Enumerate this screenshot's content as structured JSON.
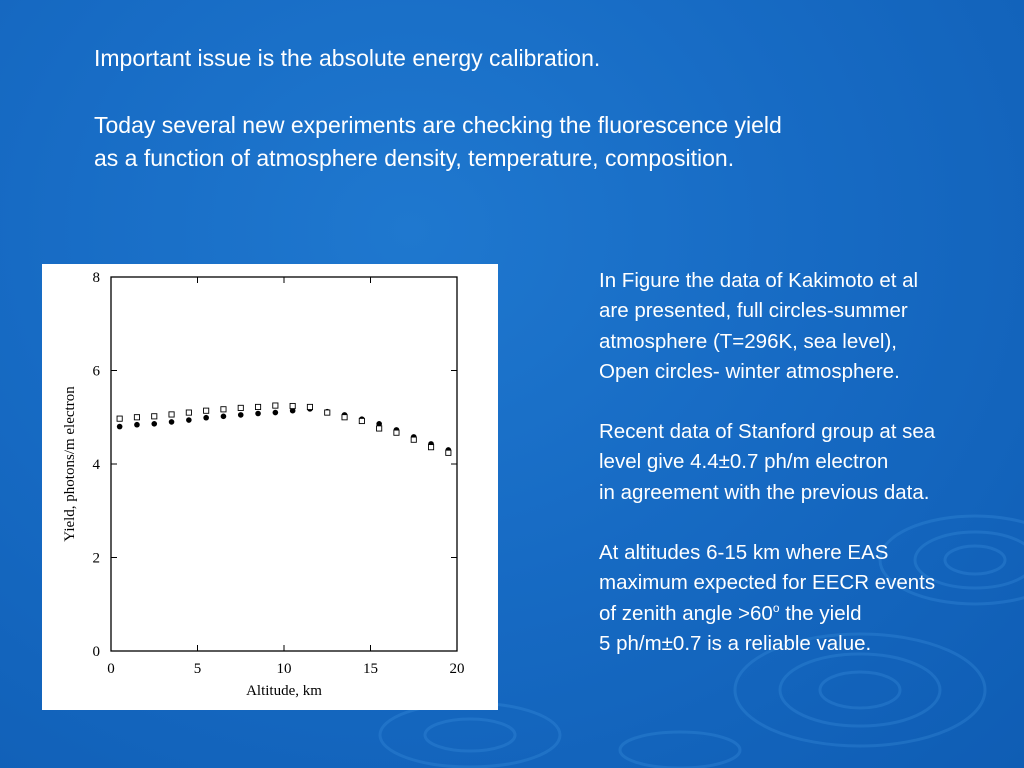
{
  "slide": {
    "top_paragraphs": [
      [
        "Important issue is the absolute energy calibration."
      ],
      [
        "Today several new experiments are checking the fluorescence yield",
        "as a function of atmosphere density, temperature, composition."
      ]
    ],
    "side_paragraphs": [
      [
        "In Figure the data of Kakimoto et al",
        "are presented, full circles-summer",
        "atmosphere (T=296K, sea level),",
        "Open circles- winter atmosphere."
      ],
      [
        "Recent data of Stanford group at sea",
        "level give 4.4±0.7 ph/m electron",
        "in agreement with the previous data."
      ]
    ],
    "last_paragraph": {
      "line1": "At altitudes 6-15 km where EAS",
      "line2": "maximum expected for EECR events",
      "line3_before": "of zenith angle >60",
      "line3_sup": "o",
      "line3_after": " the yield",
      "line4": "5 ph/m±0.7  is a reliable value."
    },
    "colors": {
      "background": "#1769c2",
      "text": "#ffffff",
      "panel": "#ffffff",
      "ink": "#000000"
    }
  },
  "chart_data": {
    "type": "scatter",
    "title": "",
    "xlabel": "Altitude, km",
    "ylabel": "Yield, photons/m electron",
    "xlim": [
      0,
      20
    ],
    "ylim": [
      0,
      8
    ],
    "xticks": [
      0,
      5,
      10,
      15,
      20
    ],
    "yticks": [
      0,
      2,
      4,
      6,
      8
    ],
    "grid": false,
    "series": [
      {
        "marker": "filled-circle",
        "x": [
          0.5,
          1.5,
          2.5,
          3.5,
          4.5,
          5.5,
          6.5,
          7.5,
          8.5,
          9.5,
          10.5,
          11.5,
          12.5,
          13.5,
          14.5,
          15.5,
          16.5,
          17.5,
          18.5,
          19.5
        ],
        "y": [
          4.8,
          4.84,
          4.86,
          4.9,
          4.94,
          4.99,
          5.02,
          5.05,
          5.08,
          5.1,
          5.14,
          5.18,
          5.12,
          5.05,
          4.96,
          4.86,
          4.73,
          4.58,
          4.43,
          4.3
        ]
      },
      {
        "marker": "open-square",
        "x": [
          0.5,
          1.5,
          2.5,
          3.5,
          4.5,
          5.5,
          6.5,
          7.5,
          8.5,
          9.5,
          10.5,
          11.5,
          12.5,
          13.5,
          14.5,
          15.5,
          16.5,
          17.5,
          18.5,
          19.5
        ],
        "y": [
          4.97,
          5.0,
          5.02,
          5.06,
          5.1,
          5.14,
          5.17,
          5.2,
          5.22,
          5.25,
          5.24,
          5.22,
          5.1,
          5.0,
          4.92,
          4.76,
          4.67,
          4.52,
          4.36,
          4.24
        ]
      }
    ]
  }
}
